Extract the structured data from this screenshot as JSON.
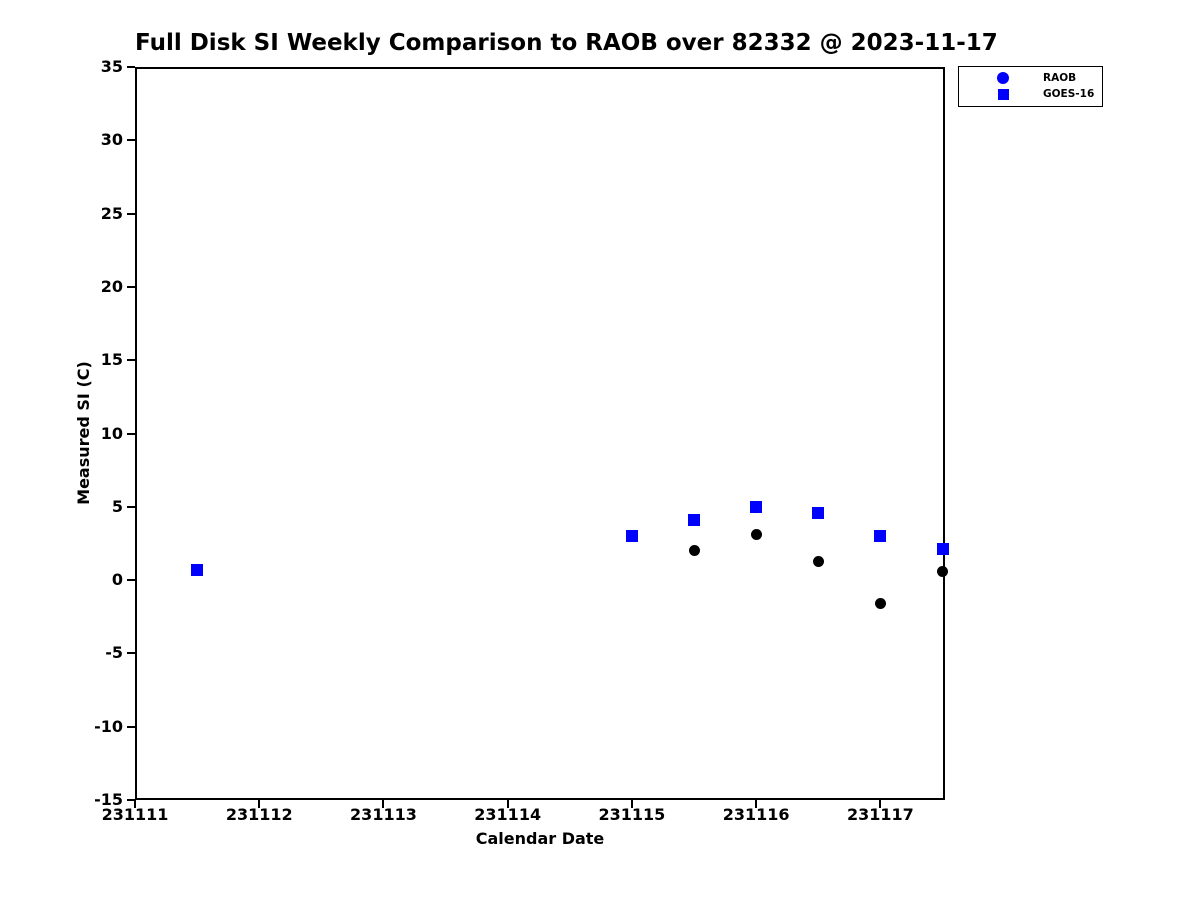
{
  "title": "Full Disk SI Weekly Comparison to RAOB over 82332 @ 2023-11-17",
  "colors": {
    "axis": "#000000",
    "text": "#000000",
    "background": "#ffffff",
    "raob_data_marker": "#000000",
    "goes16_data_marker": "#0000ff",
    "legend_marker": "#0000ff"
  },
  "legend": {
    "position": "upper right outside",
    "items": [
      {
        "label": "RAOB",
        "marker": "circle",
        "color": "#0000ff"
      },
      {
        "label": "GOES-16",
        "marker": "square",
        "color": "#0000ff"
      }
    ]
  },
  "chart_data": {
    "type": "scatter",
    "title": "Full Disk SI Weekly Comparison to RAOB over 82332 @ 2023-11-17",
    "xlabel": "Calendar Date",
    "ylabel": "Measured SI (C)",
    "xlim": [
      231111,
      231117.52
    ],
    "ylim": [
      -15,
      35
    ],
    "xticks": [
      231111,
      231112,
      231113,
      231114,
      231115,
      231116,
      231117
    ],
    "yticks": [
      35,
      30,
      25,
      20,
      15,
      10,
      5,
      0,
      -5,
      -10,
      -15
    ],
    "grid": false,
    "legend_position": "upper right",
    "series": [
      {
        "name": "RAOB",
        "marker": "circle",
        "marker_size": 11,
        "data_color": "#000000",
        "legend_color": "#0000ff",
        "points": [
          [
            231111.5,
            0.7
          ],
          [
            231115.0,
            3.0
          ],
          [
            231115.5,
            2.0
          ],
          [
            231116.0,
            3.1
          ],
          [
            231116.5,
            1.3
          ],
          [
            231117.0,
            -1.6
          ],
          [
            231117.5,
            0.6
          ]
        ]
      },
      {
        "name": "GOES-16",
        "marker": "square",
        "marker_size": 12,
        "data_color": "#0000ff",
        "legend_color": "#0000ff",
        "points": [
          [
            231111.5,
            0.7
          ],
          [
            231115.0,
            3.0
          ],
          [
            231115.5,
            4.1
          ],
          [
            231116.0,
            5.0
          ],
          [
            231116.5,
            4.6
          ],
          [
            231117.0,
            3.0
          ],
          [
            231117.5,
            2.1
          ]
        ]
      }
    ]
  }
}
